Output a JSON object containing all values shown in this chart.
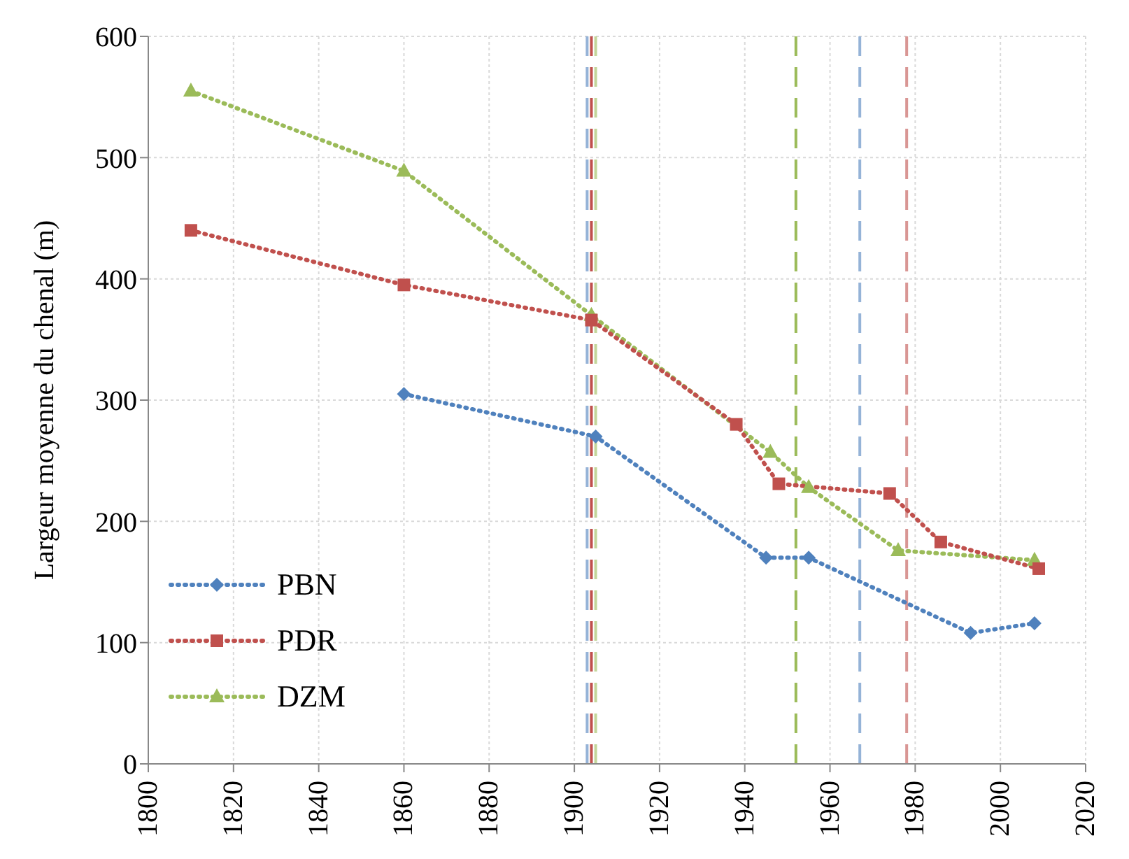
{
  "chart_data": {
    "type": "line",
    "ylabel": "Largeur moyenne du chenal (m)",
    "xlim": [
      1800,
      2020
    ],
    "xticks": [
      1800,
      1820,
      1840,
      1860,
      1880,
      1900,
      1920,
      1940,
      1960,
      1980,
      2000,
      2020
    ],
    "ylim": [
      0,
      600
    ],
    "yticks": [
      0,
      100,
      200,
      300,
      400,
      500,
      600
    ],
    "grid": true,
    "legend": "bottom left",
    "line_style": "dotted",
    "series": [
      {
        "name": "PBN",
        "color": "#4f81bd",
        "marker": "diamond",
        "x": [
          1860,
          1905,
          1945,
          1955,
          1993,
          2008
        ],
        "values": [
          305,
          270,
          170,
          170,
          108,
          116
        ]
      },
      {
        "name": "PDR",
        "color": "#c0504d",
        "marker": "square",
        "x": [
          1810,
          1860,
          1904,
          1938,
          1948,
          1974,
          1986,
          2009
        ],
        "values": [
          440,
          395,
          366,
          280,
          231,
          223,
          183,
          161
        ]
      },
      {
        "name": "DZM",
        "color": "#9bbb59",
        "marker": "triangle",
        "x": [
          1810,
          1860,
          1904,
          1946,
          1955,
          1976,
          2008
        ],
        "values": [
          555,
          489,
          370,
          257,
          228,
          176,
          168
        ]
      }
    ],
    "ref_lines": [
      {
        "axis": "x",
        "value": 1903,
        "color": "#95b3d7",
        "line_style": "dashed"
      },
      {
        "axis": "x",
        "value": 1904,
        "color": "#c0504d",
        "line_style": "dashed"
      },
      {
        "axis": "x",
        "value": 1905,
        "color": "#c3d69b",
        "line_style": "dashed"
      },
      {
        "axis": "x",
        "value": 1952,
        "color": "#9bbb59",
        "line_style": "dashed"
      },
      {
        "axis": "x",
        "value": 1967,
        "color": "#95b3d7",
        "line_style": "dashed"
      },
      {
        "axis": "x",
        "value": 1978,
        "color": "#d99694",
        "line_style": "dashed"
      }
    ]
  }
}
